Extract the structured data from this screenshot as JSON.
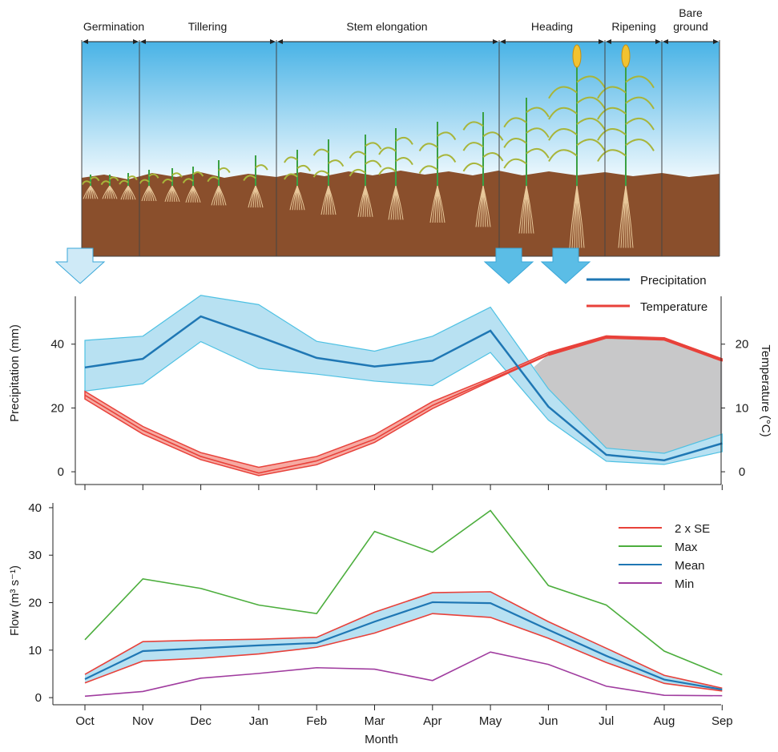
{
  "colors": {
    "precipitation": "#1f77b4",
    "precipitation_band": "#b8e1f2",
    "precipitation_band_edge": "#4ec1e3",
    "temperature": "#e8413a",
    "temperature_band": "#f6aaa2",
    "deficit": "#c8c8c9",
    "se": "#e8413a",
    "max": "#4cae3d",
    "mean": "#1f77b4",
    "min": "#a03c9f",
    "soil": "#8a4f2c",
    "sky_top": "#49b3e6",
    "sky_bottom": "#eef8fd",
    "arrow": "#5bbde6"
  },
  "stages": [
    {
      "label": "Germination"
    },
    {
      "label": "Tillering"
    },
    {
      "label": "Stem elongation"
    },
    {
      "label": "Heading"
    },
    {
      "label": "Ripening"
    },
    {
      "label_line1": "Bare",
      "label_line2": "ground"
    }
  ],
  "arrows": [
    "Oct",
    "Jun",
    "Jul"
  ],
  "chart_data": [
    {
      "type": "line",
      "categories": [
        "Oct",
        "Nov",
        "Dec",
        "Jan",
        "Feb",
        "Mar",
        "Apr",
        "May",
        "Jun",
        "Jul",
        "Aug",
        "Sep"
      ],
      "ylabel": "Precipitation (mm)",
      "y2label": "Temperature (°C)",
      "ylim": [
        -4,
        55
      ],
      "y2lim": [
        -2,
        27.5
      ],
      "yticks": [
        0,
        20,
        40
      ],
      "y2ticks": [
        0,
        10,
        20
      ],
      "legend": "top-right",
      "series": [
        {
          "name": "Precipitation",
          "axis": "left",
          "values": [
            32.7,
            35.4,
            48.7,
            42.4,
            35.7,
            33.0,
            34.8,
            44.2,
            20.4,
            5.3,
            3.6,
            8.9
          ],
          "band_low": [
            25.3,
            27.6,
            40.8,
            32.4,
            30.6,
            28.4,
            27.0,
            37.4,
            16.2,
            3.3,
            2.3,
            6.3
          ],
          "band_high": [
            41.2,
            42.5,
            55.3,
            52.4,
            40.9,
            37.8,
            42.5,
            51.6,
            26.0,
            7.4,
            5.8,
            11.8
          ]
        },
        {
          "name": "Temperature",
          "axis": "right",
          "values": [
            12.0,
            6.5,
            2.4,
            -0.2,
            1.7,
            5.1,
            10.4,
            14.4,
            18.4,
            21.1,
            20.8,
            17.5
          ],
          "band_low": [
            11.4,
            5.9,
            1.9,
            -0.6,
            1.1,
            4.6,
            9.9,
            14.2,
            18.3,
            21.0,
            20.7,
            17.4
          ],
          "band_high": [
            12.6,
            7.1,
            3.0,
            0.7,
            2.4,
            5.8,
            11.0,
            14.7,
            18.7,
            21.3,
            21.0,
            17.7
          ]
        }
      ]
    },
    {
      "type": "line",
      "categories": [
        "Oct",
        "Nov",
        "Dec",
        "Jan",
        "Feb",
        "Mar",
        "Apr",
        "May",
        "Jun",
        "Jul",
        "Aug",
        "Sep"
      ],
      "xlabel": "Month",
      "ylabel": "Flow (m³ s⁻¹)",
      "ylim": [
        -1.5,
        41
      ],
      "yticks": [
        0,
        10,
        20,
        30,
        40
      ],
      "legend": "top-right",
      "legend_entries": [
        "2 x SE",
        "Max",
        "Mean",
        "Min"
      ],
      "series": [
        {
          "name": "2 x SE",
          "upper": [
            4.9,
            11.8,
            12.1,
            12.3,
            12.7,
            18.0,
            22.1,
            22.3,
            16.0,
            10.4,
            4.7,
            2.0
          ],
          "lower": [
            3.1,
            7.7,
            8.3,
            9.2,
            10.6,
            13.6,
            17.7,
            16.9,
            12.5,
            7.4,
            3.0,
            1.4
          ]
        },
        {
          "name": "Max",
          "values": [
            12.2,
            25.0,
            23.0,
            19.5,
            17.7,
            35.0,
            30.6,
            39.4,
            23.6,
            19.5,
            9.8,
            4.8
          ]
        },
        {
          "name": "Mean",
          "values": [
            3.9,
            9.8,
            10.4,
            11.0,
            11.5,
            16.0,
            20.1,
            19.9,
            14.3,
            8.8,
            3.8,
            1.7
          ]
        },
        {
          "name": "Min",
          "values": [
            0.3,
            1.3,
            4.1,
            5.1,
            6.3,
            6.0,
            3.6,
            9.6,
            7.0,
            2.4,
            0.5,
            0.4
          ]
        }
      ]
    }
  ]
}
